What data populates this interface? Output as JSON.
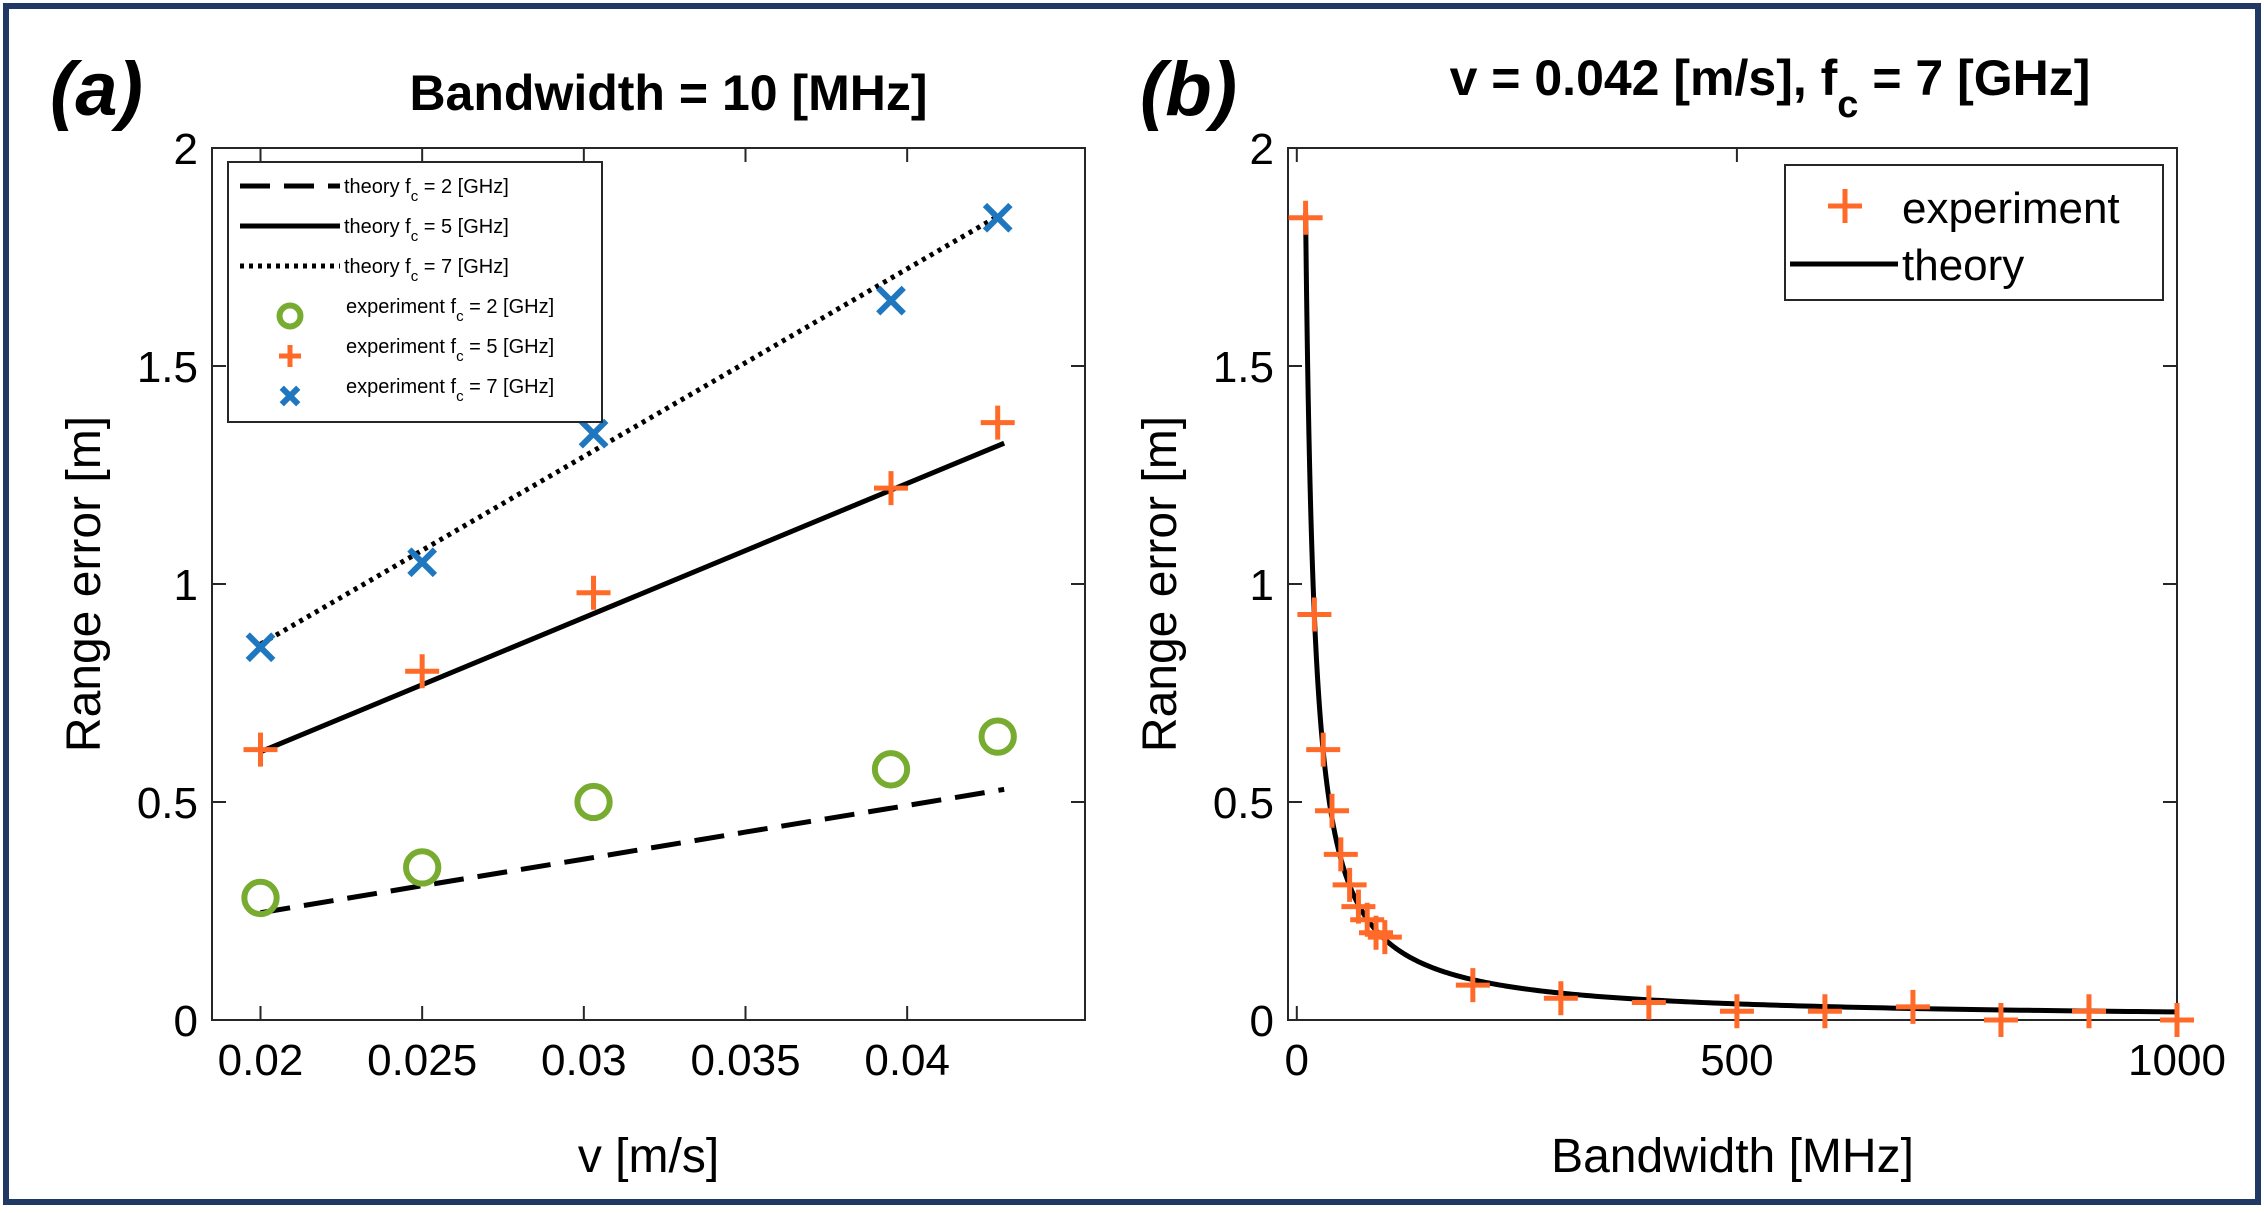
{
  "chart_data": [
    {
      "type": "scatter",
      "panel_label": "(a)",
      "title": "Bandwidth  = 10 [MHz]",
      "xlabel": "v [m/s]",
      "ylabel": "Range error [m]",
      "xlim": [
        0.0185,
        0.0455
      ],
      "ylim": [
        0,
        2
      ],
      "xticks": [
        0.02,
        0.025,
        0.03,
        0.035,
        0.04
      ],
      "xtick_labels": [
        "0.02",
        "0.025",
        "0.03",
        "0.035",
        "0.04"
      ],
      "yticks": [
        0,
        0.5,
        1,
        1.5,
        2
      ],
      "ytick_labels": [
        "0",
        "0.5",
        "1",
        "1.5",
        "2"
      ],
      "grid": false,
      "legend_position": "top-left",
      "series": [
        {
          "label_prefix": "theory f",
          "label_sub": "c",
          "label_suffix": " = 2 [GHz]",
          "kind": "line",
          "style": "dashed",
          "color": "#000000",
          "x": [
            0.02,
            0.025,
            0.03,
            0.035,
            0.04,
            0.043
          ],
          "y": [
            0.246,
            0.308,
            0.369,
            0.431,
            0.492,
            0.529
          ]
        },
        {
          "label_prefix": "theory f",
          "label_sub": "c",
          "label_suffix": " = 5 [GHz]",
          "kind": "line",
          "style": "solid",
          "color": "#000000",
          "x": [
            0.02,
            0.043
          ],
          "y": [
            0.615,
            1.323
          ]
        },
        {
          "label_prefix": "theory f",
          "label_sub": "c",
          "label_suffix": " = 7 [GHz]",
          "kind": "line",
          "style": "dotted",
          "color": "#000000",
          "x": [
            0.02,
            0.043
          ],
          "y": [
            0.862,
            1.852
          ]
        },
        {
          "label_prefix": "experiment f",
          "label_sub": "c",
          "label_suffix": " = 2 [GHz]",
          "kind": "marker",
          "marker": "circle",
          "color": "#77ac30",
          "x": [
            0.02,
            0.025,
            0.0303,
            0.0395,
            0.0428
          ],
          "y": [
            0.28,
            0.35,
            0.5,
            0.575,
            0.65
          ]
        },
        {
          "label_prefix": "experiment f",
          "label_sub": "c",
          "label_suffix": " = 5 [GHz]",
          "kind": "marker",
          "marker": "plus",
          "color": "#ff6a28",
          "x": [
            0.02,
            0.025,
            0.0303,
            0.0395,
            0.0428
          ],
          "y": [
            0.62,
            0.8,
            0.98,
            1.22,
            1.37
          ]
        },
        {
          "label_prefix": "experiment f",
          "label_sub": "c",
          "label_suffix": " = 7 [GHz]",
          "kind": "marker",
          "marker": "x",
          "color": "#1f77c0",
          "x": [
            0.02,
            0.025,
            0.0303,
            0.0395,
            0.0428
          ],
          "y": [
            0.855,
            1.05,
            1.345,
            1.65,
            1.84
          ]
        }
      ]
    },
    {
      "type": "scatter",
      "panel_label": "(b)",
      "title_parts": [
        "v = 0.042 [m/s], f",
        "c",
        " = 7 [GHz]"
      ],
      "xlabel": "Bandwidth [MHz]",
      "ylabel": "Range error [m]",
      "xlim": [
        -10,
        1000
      ],
      "ylim": [
        0,
        2
      ],
      "xticks": [
        0,
        500,
        1000
      ],
      "xtick_labels": [
        "0",
        "500",
        "1000"
      ],
      "yticks": [
        0,
        0.5,
        1,
        1.5,
        2
      ],
      "ytick_labels": [
        "0",
        "0.5",
        "1",
        "1.5",
        "2"
      ],
      "grid": false,
      "legend_position": "top-right",
      "series": [
        {
          "label": "experiment",
          "kind": "marker",
          "marker": "plus",
          "color": "#ff6a28",
          "x": [
            10,
            20,
            30,
            40,
            50,
            60,
            70,
            80,
            90,
            100,
            200,
            300,
            400,
            500,
            600,
            700,
            800,
            900,
            1000
          ],
          "y": [
            1.84,
            0.93,
            0.62,
            0.48,
            0.38,
            0.31,
            0.26,
            0.23,
            0.2,
            0.19,
            0.08,
            0.05,
            0.04,
            0.02,
            0.02,
            0.03,
            0.0,
            0.02,
            0.0
          ]
        },
        {
          "label": "theory",
          "kind": "function",
          "style": "solid",
          "color": "#000000",
          "formula": "y = k / x",
          "k": 18.5,
          "x_range": [
            10,
            1000
          ]
        }
      ]
    }
  ]
}
